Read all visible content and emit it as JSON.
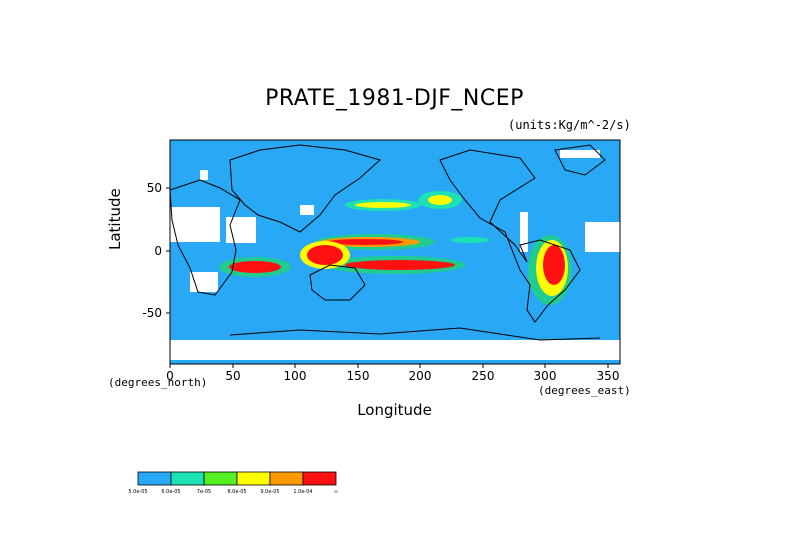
{
  "map": {
    "title": "PRATE_1981-DJF_NCEP",
    "units": "(units:Kg/m^-2/s)",
    "xlabel": "Longitude",
    "ylabel": "Latitude",
    "x_unit_label": "(degrees_north)",
    "x_unit_label2": "(degrees_east)",
    "x_ticks": [
      "0",
      "50",
      "100",
      "150",
      "200",
      "250",
      "300",
      "350"
    ],
    "y_ticks": [
      "50",
      "0",
      "-50"
    ],
    "ocean_color": "#29a8f5",
    "missing_color": "#ffffff"
  },
  "legend": {
    "colors": [
      "#29a8f5",
      "#1de0b4",
      "#20cc90",
      "#55ee22",
      "#ffff00",
      "#ff9900",
      "#ff1111"
    ],
    "labels": [
      "5.0e-05",
      "6.0e-05",
      "7e-05",
      "8.0e-05",
      "9.0e-05",
      "1.0e-04",
      "∞"
    ]
  },
  "chart_data": {
    "type": "heatmap",
    "title": "PRATE_1981-DJF_NCEP",
    "xlabel": "Longitude",
    "ylabel": "Latitude",
    "xlim": [
      0,
      360
    ],
    "ylim": [
      -90,
      90
    ],
    "x_ticks": [
      0,
      50,
      100,
      150,
      200,
      250,
      300,
      350
    ],
    "y_ticks": [
      -50,
      0,
      50
    ],
    "levels": [
      "5.0e-05",
      "6.0e-05",
      "7e-05",
      "8.0e-05",
      "9.0e-05",
      "1.0e-04"
    ]
  }
}
